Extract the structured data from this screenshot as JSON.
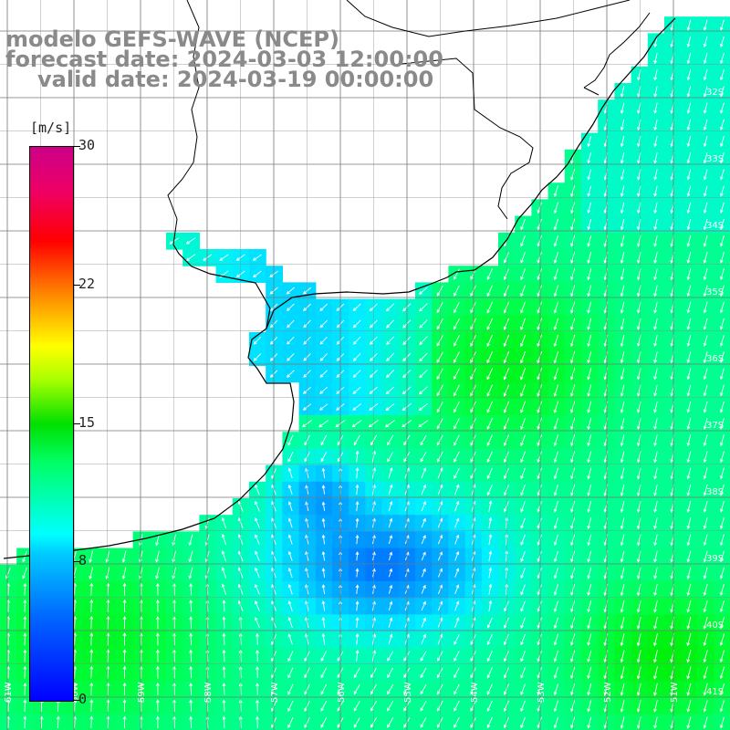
{
  "title": {
    "line1": "modelo GEFS-WAVE (NCEP)",
    "line2": "forecast date: 2024-03-03 12:00:00",
    "line3": "valid date: 2024-03-19 00:00:00"
  },
  "colorbar": {
    "unit": "[m/s]",
    "ticks": [
      "30",
      "22",
      "15",
      "8",
      "0"
    ],
    "tick_values": [
      30,
      22,
      15,
      8,
      0
    ],
    "min": 0,
    "max": 30,
    "colors": [
      "#0000ff",
      "#0066ff",
      "#00ccff",
      "#00ffff",
      "#00ff66",
      "#00e000",
      "#aaff00",
      "#ffff00",
      "#ff8800",
      "#ff0000",
      "#ee0066",
      "#cc0088"
    ]
  },
  "latitude_labels": [
    "32S",
    "33S",
    "34S",
    "35S",
    "36S",
    "37S",
    "38S",
    "39S",
    "40S",
    "41S"
  ],
  "longitude_labels": [
    "61W",
    "60W",
    "59W",
    "58W",
    "57W",
    "56W",
    "55W",
    "54W",
    "53W",
    "52W",
    "51W"
  ],
  "map": {
    "land_color": "#ffffff",
    "coast_color": "#000000",
    "grid_color": "#777777",
    "arrow_color": "#ffffff"
  }
}
